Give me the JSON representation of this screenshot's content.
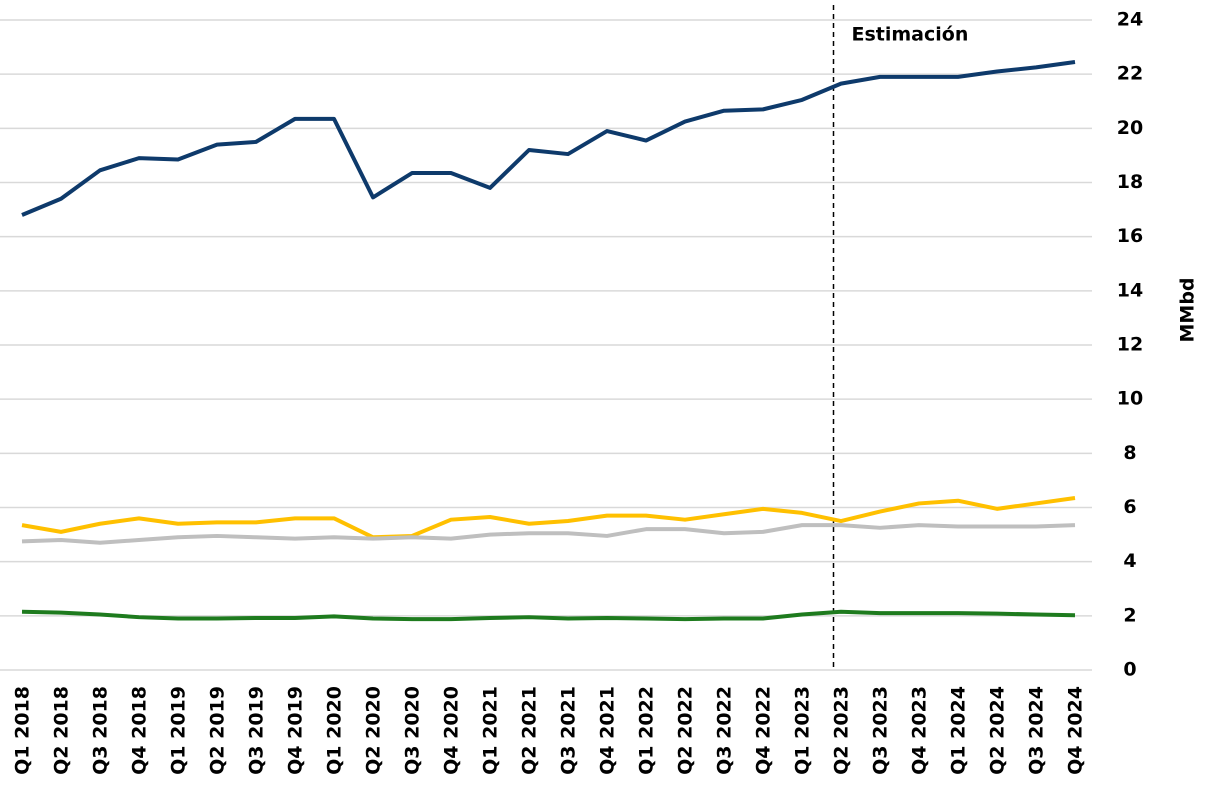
{
  "chart_data": {
    "type": "line",
    "y_label": "MMbd",
    "y_axis_side": "right",
    "grid": true,
    "annotation": {
      "text": "Estimación",
      "x": "Q2 2023"
    },
    "categories": [
      "Q1 2018",
      "Q2 2018",
      "Q3 2018",
      "Q4 2018",
      "Q1 2019",
      "Q2 2019",
      "Q3 2019",
      "Q4 2019",
      "Q1 2020",
      "Q2 2020",
      "Q3 2020",
      "Q4 2020",
      "Q1 2021",
      "Q2 2021",
      "Q3 2021",
      "Q4 2021",
      "Q1 2022",
      "Q2 2022",
      "Q3 2022",
      "Q4 2022",
      "Q1 2023",
      "Q2 2023",
      "Q3 2023",
      "Q4 2023",
      "Q1 2024",
      "Q2 2024",
      "Q3 2024",
      "Q4 2024"
    ],
    "ylim": [
      0,
      24
    ],
    "yticks": [
      0,
      2,
      4,
      6,
      8,
      10,
      12,
      14,
      16,
      18,
      20,
      22,
      24
    ],
    "series": [
      {
        "color": "#0e3a6b",
        "values": [
          16.8,
          17.4,
          18.45,
          18.9,
          18.85,
          19.4,
          19.5,
          20.35,
          20.35,
          17.45,
          18.35,
          18.35,
          17.8,
          19.2,
          19.05,
          19.9,
          19.55,
          20.25,
          20.65,
          20.7,
          21.05,
          21.65,
          21.9,
          21.9,
          21.9,
          22.1,
          22.25,
          22.45
        ]
      },
      {
        "color": "#ffc000",
        "values": [
          5.35,
          5.1,
          5.4,
          5.6,
          5.4,
          5.45,
          5.45,
          5.6,
          5.6,
          4.9,
          4.95,
          5.55,
          5.65,
          5.4,
          5.5,
          5.7,
          5.7,
          5.55,
          5.75,
          5.95,
          5.8,
          5.5,
          5.85,
          6.15,
          6.25,
          5.95,
          6.15,
          6.35
        ]
      },
      {
        "color": "#bfbfbf",
        "values": [
          4.75,
          4.8,
          4.7,
          4.8,
          4.9,
          4.95,
          4.9,
          4.85,
          4.9,
          4.85,
          4.9,
          4.85,
          5.0,
          5.05,
          5.05,
          4.95,
          5.2,
          5.2,
          5.05,
          5.1,
          5.35,
          5.35,
          5.25,
          5.35,
          5.3,
          5.3,
          5.3,
          5.35
        ]
      },
      {
        "color": "#1e7b1e",
        "values": [
          2.15,
          2.12,
          2.05,
          1.95,
          1.9,
          1.9,
          1.92,
          1.92,
          1.98,
          1.9,
          1.88,
          1.88,
          1.92,
          1.95,
          1.9,
          1.92,
          1.9,
          1.88,
          1.9,
          1.9,
          2.05,
          2.15,
          2.1,
          2.1,
          2.1,
          2.08,
          2.05,
          2.02
        ]
      }
    ]
  }
}
